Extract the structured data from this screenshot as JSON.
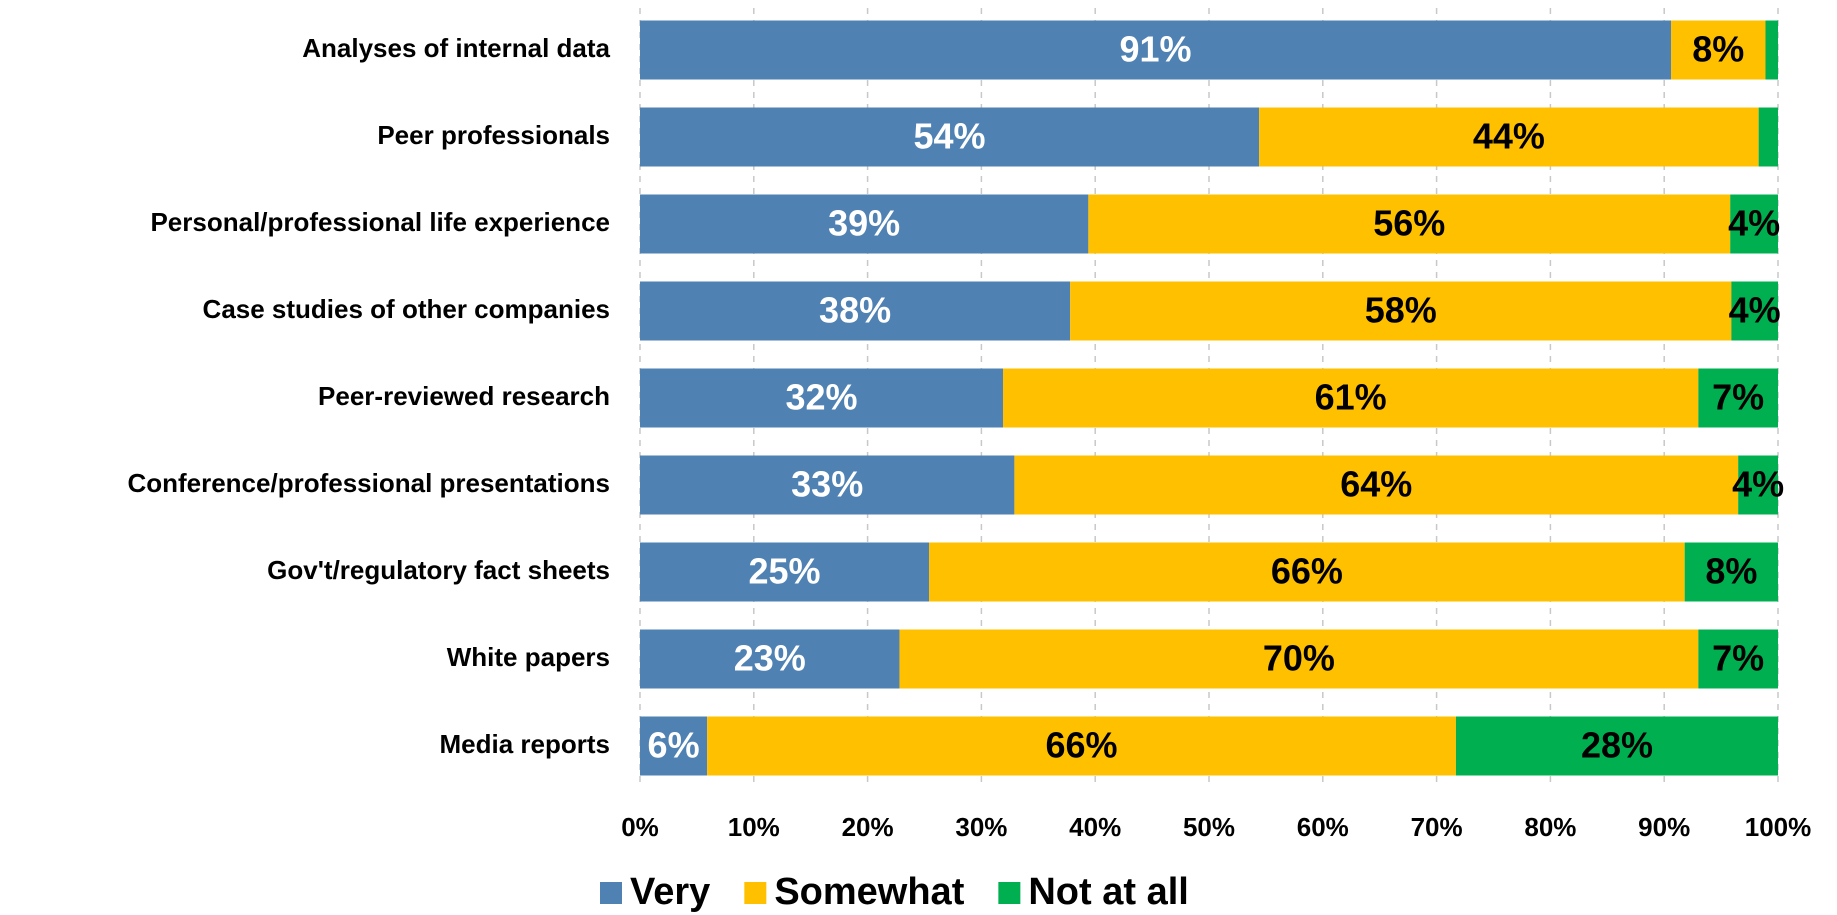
{
  "chart_data": {
    "type": "stacked_barh",
    "categories": [
      "Analyses of internal data",
      "Peer professionals",
      "Personal/professional life experience",
      "Case studies of other companies",
      "Peer-reviewed research",
      "Conference/professional presentations",
      "Gov't/regulatory fact sheets",
      "White papers",
      "Media reports"
    ],
    "series": [
      {
        "name": "Very",
        "color": "#4f81b3",
        "label_color": "#ffffff",
        "values": [
          90.6,
          54.4,
          39.4,
          37.8,
          31.9,
          32.9,
          25.4,
          22.8,
          5.9
        ],
        "value_labels": [
          "91%",
          "54%",
          "39%",
          "38%",
          "32%",
          "33%",
          "25%",
          "23%",
          "6%"
        ]
      },
      {
        "name": "Somewhat",
        "color": "#ffc000",
        "label_color": "#000000",
        "values": [
          8.3,
          43.9,
          56.4,
          58.1,
          61.1,
          63.6,
          66.4,
          70.2,
          65.8
        ],
        "value_labels": [
          "8%",
          "44%",
          "56%",
          "58%",
          "61%",
          "64%",
          "66%",
          "70%",
          "66%"
        ]
      },
      {
        "name": "Not at all",
        "color": "#00b050",
        "label_color": "#000000",
        "values": [
          1.1,
          1.7,
          4.2,
          4.1,
          7.0,
          3.5,
          8.2,
          7.0,
          28.3
        ],
        "value_labels": [
          null,
          null,
          "4%",
          "4%",
          "7%",
          "4%",
          "8%",
          "7%",
          "28%"
        ]
      }
    ],
    "xlim": [
      0,
      100
    ],
    "xticks": [
      {
        "value": 0,
        "label": "0%"
      },
      {
        "value": 10,
        "label": "10%"
      },
      {
        "value": 20,
        "label": "20%"
      },
      {
        "value": 30,
        "label": "30%"
      },
      {
        "value": 40,
        "label": "40%"
      },
      {
        "value": 50,
        "label": "50%"
      },
      {
        "value": 60,
        "label": "60%"
      },
      {
        "value": 70,
        "label": "70%"
      },
      {
        "value": 80,
        "label": "80%"
      },
      {
        "value": 90,
        "label": "90%"
      },
      {
        "value": 100,
        "label": "100%"
      }
    ],
    "grid": true,
    "legend": "bottom"
  }
}
